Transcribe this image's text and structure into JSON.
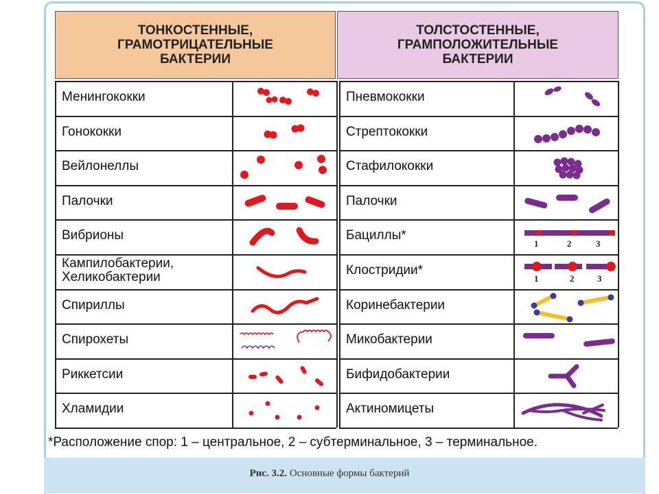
{
  "headers": {
    "left": "ТОНКОСТЕННЫЕ,\nГРАМОТРИЦАТЕЛЬНЫЕ\nБАКТЕРИИ",
    "right": "ТОЛСТОСТЕННЫЕ,\nГРАМПОЛОЖИТЕЛЬНЫЕ\nБАКТЕРИИ"
  },
  "left_rows": [
    {
      "label": "Менингококки"
    },
    {
      "label": "Гонококки"
    },
    {
      "label": "Вейлонеллы"
    },
    {
      "label": "Палочки"
    },
    {
      "label": "Вибрионы"
    },
    {
      "label": "Кампилобактерии,\nХеликобактерии"
    },
    {
      "label": "Спириллы"
    },
    {
      "label": "Спирохеты"
    },
    {
      "label": "Риккетсии"
    },
    {
      "label": "Хламидии"
    }
  ],
  "right_rows": [
    {
      "label": "Пневмококки"
    },
    {
      "label": "Стрептококки"
    },
    {
      "label": "Стафилококки"
    },
    {
      "label": "Палочки"
    },
    {
      "label": "Бациллы*",
      "markers": [
        "1",
        "2",
        "3"
      ]
    },
    {
      "label": "Клостридии*",
      "markers": [
        "1",
        "2",
        "3"
      ]
    },
    {
      "label": "Коринебактерии"
    },
    {
      "label": "Микобактерии"
    },
    {
      "label": "Бифидобактерии"
    },
    {
      "label": "Актиномицеты"
    }
  ],
  "footnote": "*Расположение спор: 1 – центральное,  2 – субтерминальное, 3 – терминальное.",
  "caption": {
    "label": "Рис. 3.2.",
    "text": " Основные формы бактерий"
  },
  "colors": {
    "gram_negative": "#e0191f",
    "gram_positive": "#7b2d8e",
    "spore": "#e0191f",
    "coryne_body": "#f2c02a",
    "coryne_end": "#3b3b9a",
    "left_header_bg": "#f6c79b",
    "right_header_bg": "#e9c9e4"
  }
}
